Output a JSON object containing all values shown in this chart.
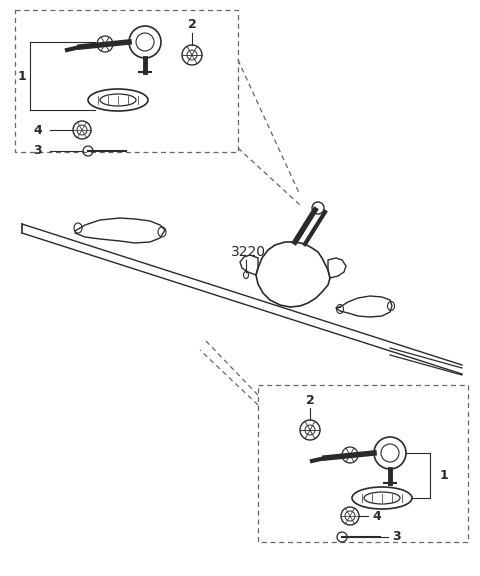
{
  "bg_color": "#ffffff",
  "line_color": "#2a2a2a",
  "dashed_color": "#666666",
  "part_number": "3220",
  "figsize": [
    4.8,
    5.76
  ],
  "dpi": 100
}
